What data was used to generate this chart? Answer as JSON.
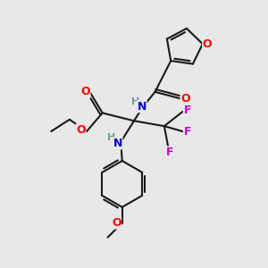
{
  "bg_color": "#e8e8e8",
  "bond_color": "#1a1a1a",
  "bond_width": 1.5,
  "atom_colors": {
    "O": "#ff0000",
    "N": "#0000cc",
    "F": "#cc00cc",
    "H": "#7a9a9a",
    "C": "#1a1a1a"
  },
  "figsize": [
    3.0,
    3.0
  ],
  "dpi": 100,
  "xlim": [
    0,
    10
  ],
  "ylim": [
    0,
    10
  ]
}
